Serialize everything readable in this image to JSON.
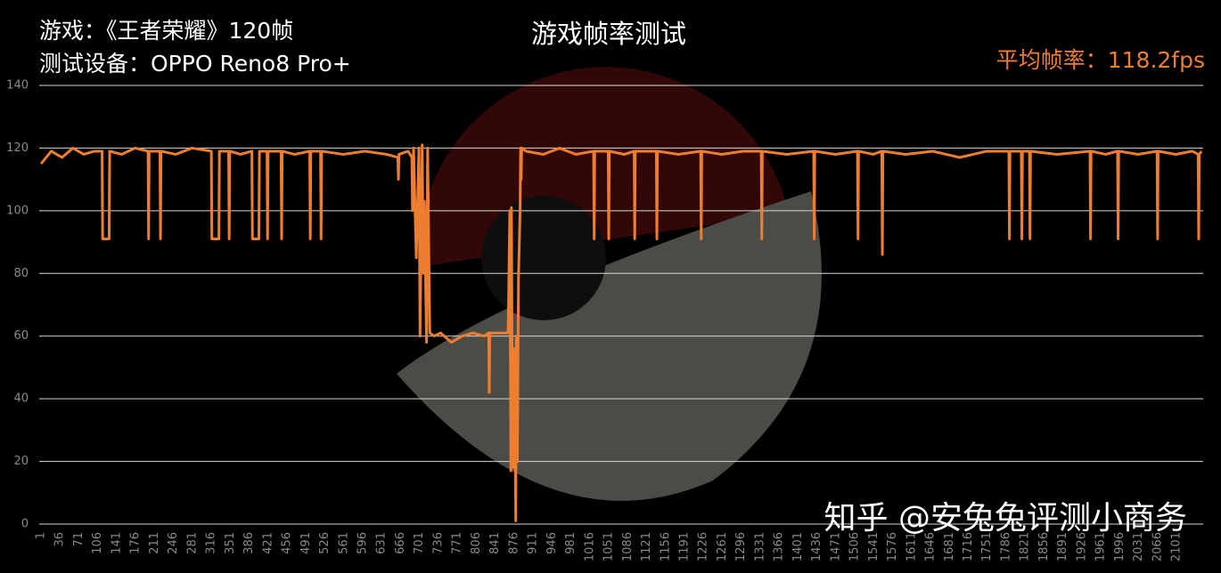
{
  "chart_data": {
    "type": "line",
    "title": "游戏帧率测试",
    "subtitle": [
      "游戏：《王者荣耀》120帧",
      "测试设备：OPPO Reno8 Pro+"
    ],
    "annotation": "平均帧率：118.2fps",
    "watermark": "知乎 @安兔兔评测小商务",
    "color": "#ed7d31",
    "grid": true,
    "xlim": [
      1,
      2147
    ],
    "ylim": [
      0,
      140
    ],
    "yticks": [
      0,
      20,
      40,
      60,
      80,
      100,
      120,
      140
    ],
    "xticks": [
      1,
      36,
      71,
      106,
      141,
      176,
      211,
      246,
      281,
      316,
      351,
      386,
      421,
      456,
      491,
      526,
      561,
      596,
      631,
      666,
      701,
      736,
      771,
      806,
      841,
      876,
      911,
      946,
      981,
      1016,
      1051,
      1086,
      1121,
      1156,
      1191,
      1226,
      1261,
      1296,
      1331,
      1366,
      1401,
      1436,
      1471,
      1506,
      1541,
      1576,
      1611,
      1646,
      1681,
      1716,
      1751,
      1786,
      1821,
      1856,
      1891,
      1926,
      1961,
      1996,
      2031,
      2066,
      2101
    ],
    "x": [
      1,
      20,
      40,
      60,
      80,
      100,
      114,
      115,
      127,
      128,
      150,
      175,
      199,
      200,
      201,
      221,
      222,
      223,
      250,
      280,
      316,
      317,
      330,
      331,
      348,
      349,
      350,
      370,
      391,
      392,
      404,
      405,
      419,
      420,
      421,
      445,
      446,
      447,
      470,
      498,
      499,
      500,
      518,
      519,
      520,
      560,
      600,
      640,
      661,
      662,
      663,
      680,
      687,
      688,
      690,
      695,
      700,
      702,
      706,
      708,
      710,
      714,
      716,
      720,
      728,
      740,
      760,
      780,
      800,
      820,
      829,
      830,
      831,
      850,
      864,
      865,
      868,
      870,
      871,
      873,
      875,
      877,
      879,
      880,
      882,
      884,
      887,
      888,
      889,
      890,
      898,
      930,
      960,
      990,
      1023,
      1024,
      1025,
      1050,
      1051,
      1052,
      1080,
      1098,
      1099,
      1100,
      1139,
      1140,
      1141,
      1180,
      1221,
      1222,
      1223,
      1260,
      1300,
      1333,
      1334,
      1335,
      1380,
      1430,
      1431,
      1432,
      1470,
      1511,
      1512,
      1513,
      1540,
      1556,
      1557,
      1558,
      1600,
      1650,
      1700,
      1750,
      1791,
      1792,
      1793,
      1814,
      1815,
      1816,
      1829,
      1830,
      1831,
      1880,
      1941,
      1942,
      1943,
      1970,
      1992,
      1993,
      1994,
      2030,
      2065,
      2066,
      2067,
      2100,
      2130,
      2141,
      2142,
      2143,
      2147
    ],
    "values": [
      115,
      119,
      117,
      120,
      118,
      119,
      119,
      91,
      91,
      119,
      118,
      120,
      119,
      91,
      119,
      119,
      91,
      119,
      118,
      120,
      119,
      91,
      91,
      119,
      119,
      91,
      119,
      118,
      119,
      91,
      91,
      119,
      119,
      91,
      119,
      119,
      91,
      119,
      118,
      119,
      91,
      119,
      119,
      91,
      119,
      118,
      119,
      118,
      117,
      110,
      118,
      119,
      117,
      100,
      120,
      85,
      120,
      60,
      121,
      80,
      103,
      58,
      120,
      61,
      60,
      61,
      58,
      60,
      61,
      60,
      61,
      42,
      61,
      61,
      61,
      62,
      100,
      17,
      101,
      20,
      18,
      56,
      1,
      60,
      20,
      78,
      100,
      120,
      110,
      120,
      119,
      118,
      120,
      118,
      119,
      91,
      119,
      119,
      91,
      119,
      118,
      119,
      91,
      119,
      119,
      91,
      119,
      118,
      119,
      91,
      119,
      118,
      119,
      119,
      91,
      119,
      118,
      119,
      91,
      119,
      118,
      119,
      91,
      119,
      118,
      119,
      86,
      119,
      118,
      119,
      117,
      119,
      119,
      91,
      119,
      119,
      91,
      119,
      119,
      91,
      119,
      118,
      119,
      91,
      119,
      118,
      119,
      91,
      119,
      118,
      119,
      91,
      119,
      118,
      119,
      118,
      91,
      118,
      119
    ]
  }
}
